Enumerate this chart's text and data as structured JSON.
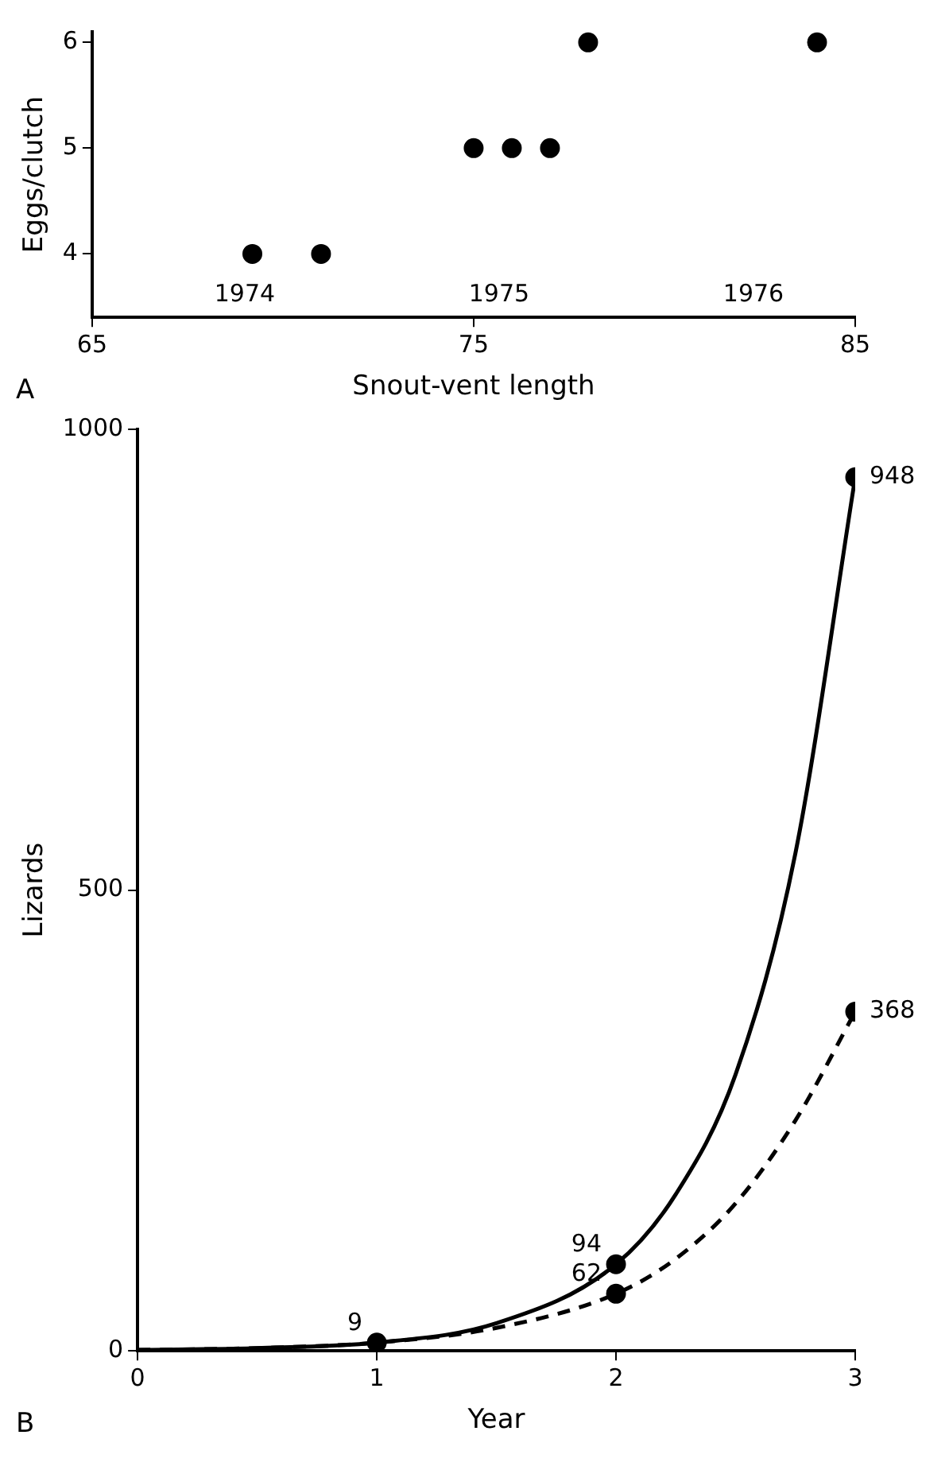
{
  "chart_data": [
    {
      "type": "scatter",
      "xlabel": "Snout-vent length",
      "ylabel": "Eggs/clutch",
      "xlim": [
        65,
        85
      ],
      "xticks": [
        65,
        75,
        85
      ],
      "ylim": [
        3.4,
        6.1
      ],
      "yticks": [
        4,
        5,
        6
      ],
      "grid": false,
      "legend": false,
      "marker": "circle",
      "series": [
        {
          "color": "#000000",
          "x": [
            69.2,
            71,
            75,
            76,
            77,
            78,
            84
          ],
          "values": [
            4,
            4,
            5,
            5,
            5,
            6,
            6
          ]
        }
      ],
      "annotations": [
        "1974",
        "1975",
        "1976",
        "A"
      ]
    },
    {
      "type": "line",
      "xlabel": "Year",
      "ylabel": "Lizards",
      "xlim": [
        0,
        3
      ],
      "xticks": [
        0,
        1,
        2,
        3
      ],
      "ylim": [
        0,
        1000
      ],
      "yticks": [
        0,
        500,
        1000
      ],
      "grid": false,
      "legend": false,
      "series": [
        {
          "color": "#000000",
          "line_style": "solid",
          "marker": "none",
          "x": [
            0,
            0.5,
            1,
            1.5,
            2,
            2.25,
            2.5,
            2.75,
            3
          ],
          "values": [
            1,
            3,
            9,
            30,
            94,
            170,
            300,
            540,
            948
          ]
        },
        {
          "color": "#000000",
          "line_style": "dashed",
          "marker": "none",
          "x": [
            0,
            0.5,
            1,
            1.5,
            2,
            2.25,
            2.5,
            2.75,
            3
          ],
          "values": [
            1,
            3,
            9,
            25,
            62,
            100,
            160,
            250,
            368
          ]
        },
        {
          "type": "scatter",
          "color": "#000000",
          "marker": "circle",
          "x": [
            2,
            3
          ],
          "values": [
            94,
            948
          ],
          "value_labels": [
            "94",
            "948"
          ]
        },
        {
          "type": "scatter",
          "color": "#000000",
          "marker": "circle",
          "x": [
            1,
            2,
            3
          ],
          "values": [
            9,
            62,
            368
          ],
          "value_labels": [
            "9",
            "62",
            "368"
          ]
        }
      ],
      "annotations": [
        "B"
      ]
    }
  ]
}
